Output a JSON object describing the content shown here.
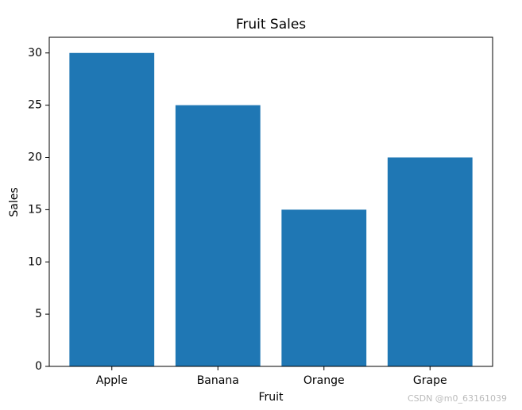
{
  "chart_data": {
    "type": "bar",
    "title": "Fruit Sales",
    "xlabel": "Fruit",
    "ylabel": "Sales",
    "categories": [
      "Apple",
      "Banana",
      "Orange",
      "Grape"
    ],
    "values": [
      30,
      25,
      15,
      20
    ],
    "color": "#1f77b4",
    "ylim": [
      0,
      31.5
    ],
    "yticks": [
      0,
      5,
      10,
      15,
      20,
      25,
      30
    ],
    "grid": false
  },
  "watermark": "CSDN @m0_63161039"
}
